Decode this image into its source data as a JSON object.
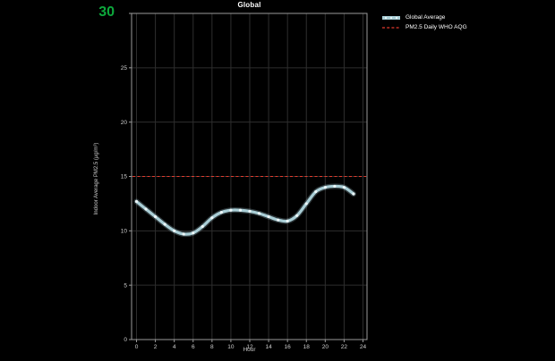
{
  "page": {
    "background": "#000000"
  },
  "header": {
    "max_value_label": "30",
    "max_value_color": "#0da83c"
  },
  "chart_data": {
    "type": "line",
    "title": "Global",
    "xlabel": "Hour",
    "ylabel": "Indoor Average PM2.5 (µg/m³)",
    "xlim": [
      0,
      24
    ],
    "ylim": [
      0,
      30
    ],
    "xticks": [
      0,
      2,
      4,
      6,
      8,
      10,
      12,
      14,
      16,
      18,
      20,
      22,
      24
    ],
    "yticks": [
      0,
      5,
      10,
      15,
      20,
      25,
      30
    ],
    "grid": true,
    "legend_position": "top-right-outside",
    "axis_color": "#9a9a9a",
    "grid_color": "#2e2e2e",
    "tick_label_color": "#cfcfcf",
    "series": [
      {
        "name": "Global Average",
        "type": "line",
        "color": "#a9ced6",
        "marker": "circle",
        "marker_color": "#edf7f9",
        "x": [
          0,
          1,
          2,
          3,
          4,
          5,
          6,
          7,
          8,
          9,
          10,
          11,
          12,
          13,
          14,
          15,
          16,
          17,
          18,
          19,
          20,
          21,
          22,
          23
        ],
        "values": [
          12.7,
          12.0,
          11.3,
          10.6,
          10.0,
          9.7,
          9.8,
          10.4,
          11.2,
          11.7,
          11.9,
          11.9,
          11.8,
          11.6,
          11.3,
          11.0,
          10.9,
          11.4,
          12.5,
          13.6,
          14.0,
          14.1,
          14.0,
          13.4
        ]
      }
    ],
    "reference_lines": [
      {
        "name": "PM2.5 Daily WHO AQG",
        "value": 15,
        "color": "#e23a2c",
        "style": "dashed"
      }
    ]
  }
}
